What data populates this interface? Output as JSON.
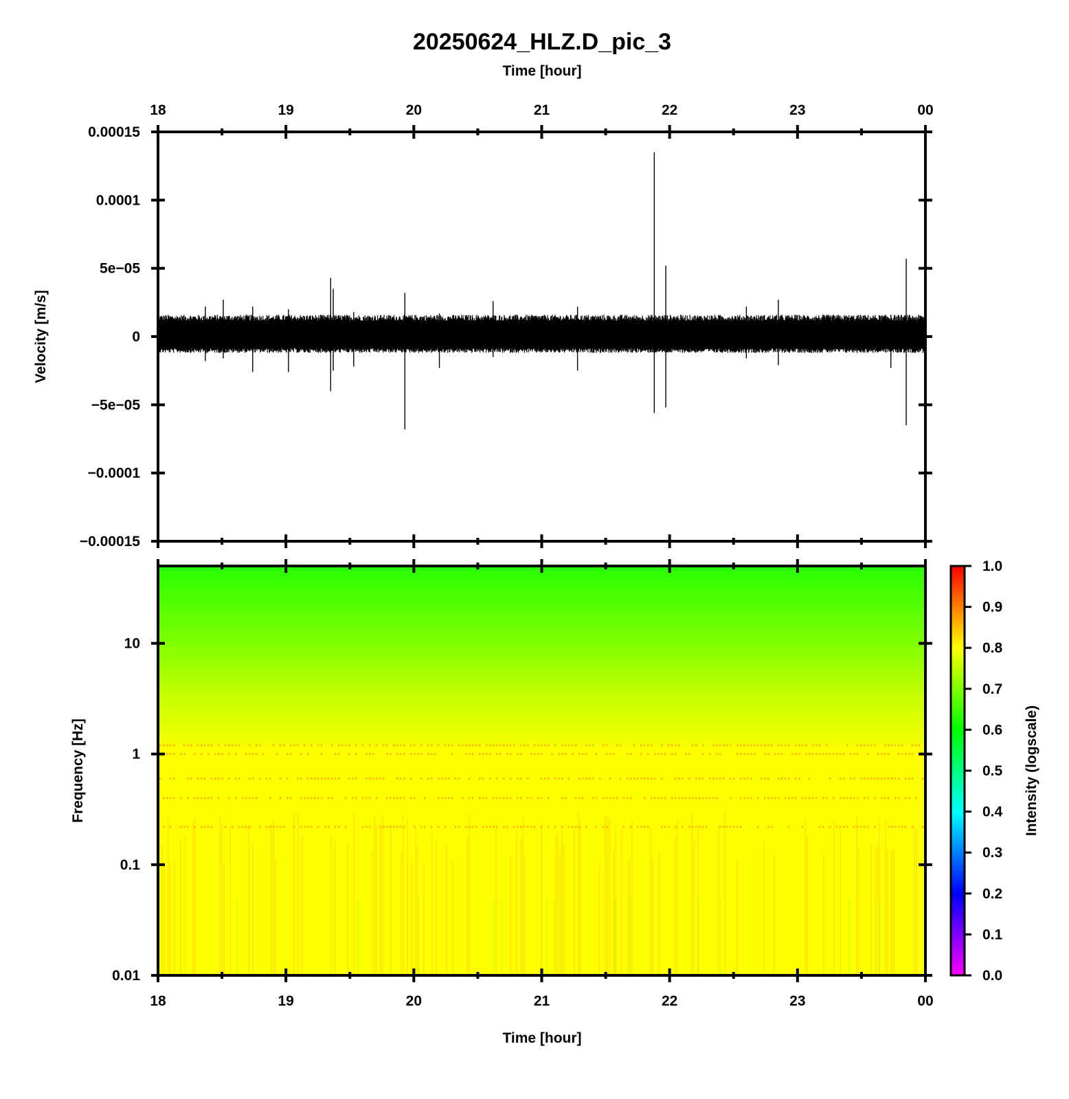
{
  "chart_data": [
    {
      "type": "line",
      "title": "20250624_HLZ.D_pic_3",
      "top_xlabel": "Time [hour]",
      "ylabel": "Velocity [m/s]",
      "x_tick_labels": [
        "18",
        "19",
        "20",
        "21",
        "22",
        "23",
        "00"
      ],
      "x_range_hours": [
        18,
        24
      ],
      "ylim": [
        -0.00015,
        0.00015
      ],
      "y_ticks": [
        -0.00015,
        -0.0001,
        -5e-05,
        0,
        5e-05,
        0.0001,
        0.00015
      ],
      "y_tick_labels": [
        "−0.00015",
        "−0.0001",
        "−5e−05",
        "0",
        "5e−05",
        "0.0001",
        "0.00015"
      ],
      "series_color": "#000000",
      "noise_band": [
        -1.2e-05,
        1.6e-05
      ],
      "spikes": [
        {
          "x": 18.37,
          "max": 2.2e-05,
          "min": -1.8e-05
        },
        {
          "x": 18.51,
          "max": 2.7e-05,
          "min": -1.6e-05
        },
        {
          "x": 18.74,
          "max": 2.2e-05,
          "min": -2.6e-05
        },
        {
          "x": 19.02,
          "max": 2e-05,
          "min": -2.6e-05
        },
        {
          "x": 19.35,
          "max": 4.3e-05,
          "min": -4e-05
        },
        {
          "x": 19.37,
          "max": 3.5e-05,
          "min": -2.5e-05
        },
        {
          "x": 19.53,
          "max": 1.8e-05,
          "min": -2.2e-05
        },
        {
          "x": 19.93,
          "max": 3.2e-05,
          "min": -6.8e-05
        },
        {
          "x": 20.2,
          "max": 1.7e-05,
          "min": -2.3e-05
        },
        {
          "x": 20.62,
          "max": 2.6e-05,
          "min": -1.5e-05
        },
        {
          "x": 21.28,
          "max": 2.2e-05,
          "min": -2.5e-05
        },
        {
          "x": 21.88,
          "max": 0.000135,
          "min": -5.6e-05
        },
        {
          "x": 21.97,
          "max": 5.2e-05,
          "min": -5.2e-05
        },
        {
          "x": 22.6,
          "max": 2.2e-05,
          "min": -1.6e-05
        },
        {
          "x": 22.85,
          "max": 2.7e-05,
          "min": -2.1e-05
        },
        {
          "x": 23.73,
          "max": 1.6e-05,
          "min": -2.3e-05
        },
        {
          "x": 23.85,
          "max": 5.7e-05,
          "min": -6.5e-05
        }
      ]
    },
    {
      "type": "heatmap",
      "xlabel": "Time [hour]",
      "ylabel": "Frequency [Hz]",
      "x_tick_labels": [
        "18",
        "19",
        "20",
        "21",
        "22",
        "23",
        "00"
      ],
      "x_range_hours": [
        18,
        24
      ],
      "y_scale": "log",
      "ylim": [
        0.01,
        50
      ],
      "y_ticks": [
        0.01,
        0.1,
        1,
        10
      ],
      "y_tick_labels": [
        "0.01",
        "0.1",
        "1",
        "10"
      ],
      "colorbar": {
        "label": "Intensity (logscale)",
        "range": [
          0,
          1
        ],
        "tick_labels": [
          "0.0",
          "0.1",
          "0.2",
          "0.3",
          "0.4",
          "0.5",
          "0.6",
          "0.7",
          "0.8",
          "0.9",
          "1.0"
        ],
        "colors": [
          "#ff00ff",
          "#0000ff",
          "#00ffff",
          "#00ff00",
          "#ffff00",
          "#ff0000"
        ]
      },
      "intensity_profile": [
        {
          "freq": 50,
          "value": 0.63
        },
        {
          "freq": 10,
          "value": 0.7
        },
        {
          "freq": 3,
          "value": 0.76
        },
        {
          "freq": 1,
          "value": 0.8
        },
        {
          "freq": 0.1,
          "value": 0.8
        },
        {
          "freq": 0.01,
          "value": 0.8
        }
      ],
      "banded_frequencies_hz": [
        1.2,
        1.0,
        0.6,
        0.4,
        0.22
      ]
    }
  ]
}
